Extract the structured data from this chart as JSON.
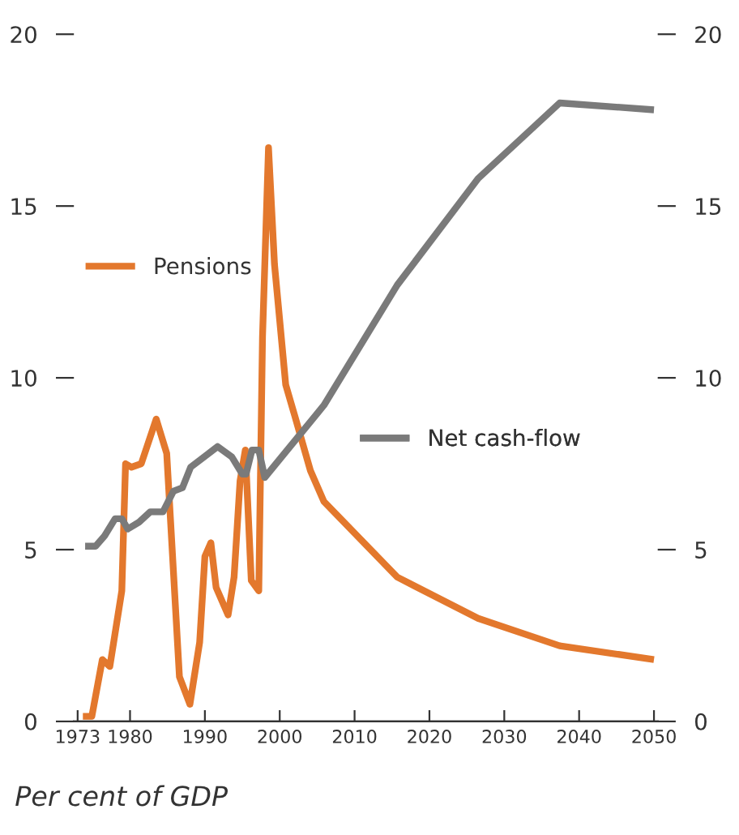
{
  "chart_data": {
    "type": "line",
    "xlim": [
      1972.5,
      2050.5
    ],
    "xticks": [
      1973,
      1980,
      1990,
      2000,
      2010,
      2020,
      2030,
      2040,
      2050
    ],
    "ylim": [
      0,
      20
    ],
    "yticks": [
      0,
      5,
      10,
      15,
      20
    ],
    "y2lim": [
      0,
      20
    ],
    "y2ticks": [
      0,
      5,
      10,
      15,
      20
    ],
    "legend": "left",
    "grid": false,
    "marker": "none",
    "line_style": "solid",
    "annotations": [
      "Per cent of GDP"
    ],
    "series": [
      {
        "name": "Pensions",
        "color": "#e3782d",
        "x": [
          1973.7,
          1974.9,
          1976.3,
          1977.3,
          1978.9,
          1979.4,
          1980.2,
          1981.5,
          1983.5,
          1984.9,
          1986.6,
          1988.0,
          1989.3,
          1990.0,
          1990.8,
          1991.5,
          1993.1,
          1993.9,
          1994.7,
          1995.4,
          1996.2,
          1997.2,
          1997.7,
          1998.5,
          1999.3,
          2000.8,
          2002.0,
          2004.1,
          2005.9,
          2015.7,
          2026.5,
          2037.4,
          2050
        ],
        "values": [
          0.15,
          0.15,
          1.8,
          1.6,
          3.8,
          7.5,
          7.4,
          7.5,
          8.8,
          7.8,
          1.3,
          0.5,
          2.3,
          4.8,
          5.2,
          3.9,
          3.1,
          4.2,
          7.0,
          7.9,
          4.1,
          3.8,
          11.2,
          16.7,
          13.3,
          9.8,
          8.9,
          7.3,
          6.4,
          4.2,
          3.0,
          2.2,
          1.8
        ]
      },
      {
        "name": "Net cash-flow",
        "color": "#7a7a7a",
        "x": [
          1974.0,
          1975.4,
          1976.6,
          1978.0,
          1978.9,
          1979.7,
          1981.2,
          1982.7,
          1984.4,
          1985.8,
          1987.0,
          1988.1,
          1991.7,
          1993.6,
          1995.0,
          1995.5,
          1996.3,
          1997.2,
          1998.0,
          2005.9,
          2015.7,
          2026.5,
          2037.4,
          2050
        ],
        "values": [
          5.1,
          5.1,
          5.4,
          5.9,
          5.9,
          5.6,
          5.8,
          6.1,
          6.1,
          6.7,
          6.8,
          7.4,
          8.0,
          7.7,
          7.2,
          7.2,
          7.9,
          7.9,
          7.1,
          9.2,
          12.7,
          15.8,
          18.0,
          17.8
        ]
      }
    ]
  }
}
